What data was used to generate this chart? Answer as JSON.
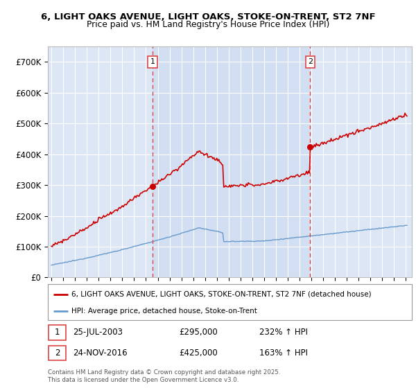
{
  "title_line1": "6, LIGHT OAKS AVENUE, LIGHT OAKS, STOKE-ON-TRENT, ST2 7NF",
  "title_line2": "Price paid vs. HM Land Registry's House Price Index (HPI)",
  "xlim_start": 1994.7,
  "xlim_end": 2025.5,
  "ylim_min": 0,
  "ylim_max": 750000,
  "background_color": "#dce6f5",
  "fig_bg_color": "#ffffff",
  "shade_color": "#dce6f5",
  "sale1_date": 2003.56,
  "sale1_price": 295000,
  "sale2_date": 2016.9,
  "sale2_price": 425000,
  "legend_line1": "6, LIGHT OAKS AVENUE, LIGHT OAKS, STOKE-ON-TRENT, ST2 7NF (detached house)",
  "legend_line2": "HPI: Average price, detached house, Stoke-on-Trent",
  "footer": "Contains HM Land Registry data © Crown copyright and database right 2025.\nThis data is licensed under the Open Government Licence v3.0.",
  "red_line_color": "#cc0000",
  "blue_line_color": "#6699cc",
  "dashed_line_color": "#dd4444",
  "grid_color": "#ffffff",
  "ytick_labels": [
    "£0",
    "£100K",
    "£200K",
    "£300K",
    "£400K",
    "£500K",
    "£600K",
    "£700K"
  ],
  "ytick_values": [
    0,
    100000,
    200000,
    300000,
    400000,
    500000,
    600000,
    700000
  ]
}
